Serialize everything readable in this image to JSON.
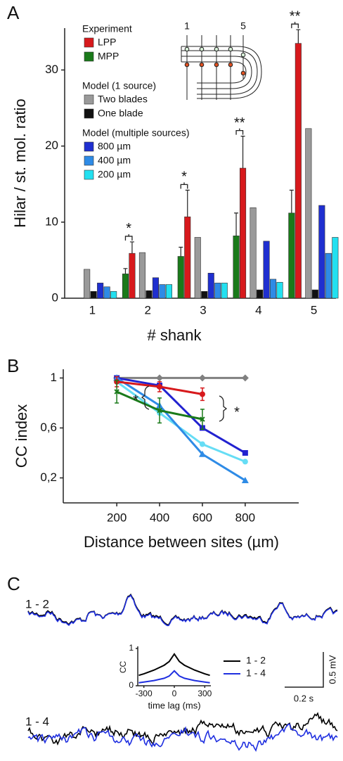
{
  "chart_data": [
    {
      "type": "bar",
      "panel": "A",
      "ylabel": "Hilar / st. mol. ratio",
      "xlabel": "# shank",
      "categories": [
        "1",
        "2",
        "3",
        "4",
        "5"
      ],
      "ylim": [
        0,
        35.5
      ],
      "yticks": [
        0,
        10,
        20,
        30
      ],
      "significance": [
        null,
        "*",
        "*",
        "**",
        "**"
      ],
      "inset_labels": [
        "1",
        "5"
      ],
      "series_groups": [
        {
          "title": "Experiment",
          "series": [
            {
              "name": "LPP",
              "color": "#d7191c",
              "values": [
                null,
                5.9,
                10.7,
                17.1,
                33.5
              ],
              "errors": [
                null,
                1.5,
                3.5,
                4.2,
                1.8
              ]
            },
            {
              "name": "MPP",
              "color": "#1a7a1a",
              "values": [
                null,
                3.2,
                5.5,
                8.2,
                11.2
              ],
              "errors": [
                null,
                0.7,
                1.2,
                3.0,
                3.0
              ]
            }
          ]
        },
        {
          "title": "Model (1 source)",
          "series": [
            {
              "name": "Two blades",
              "color": "#9a9a9a",
              "values": [
                3.8,
                6.0,
                8.0,
                11.9,
                22.3
              ]
            },
            {
              "name": "One blade",
              "color": "#111111",
              "values": [
                0.9,
                1.0,
                0.9,
                1.1,
                1.1
              ]
            }
          ]
        },
        {
          "title": "Model (multiple sources)",
          "series": [
            {
              "name": "800 µm",
              "color": "#1f2fd0",
              "values": [
                2.0,
                2.7,
                3.3,
                7.5,
                12.2
              ]
            },
            {
              "name": "400 µm",
              "color": "#2e8be6",
              "values": [
                1.5,
                1.8,
                2.0,
                2.5,
                5.9
              ]
            },
            {
              "name": "200 µm",
              "color": "#22e0f0",
              "values": [
                0.9,
                1.8,
                2.0,
                2.1,
                8.0
              ]
            }
          ]
        }
      ]
    },
    {
      "type": "line",
      "panel": "B",
      "ylabel": "CC index",
      "xlabel": "Distance between sites (µm)",
      "x": [
        200,
        400,
        600,
        800
      ],
      "xlim": [
        -50,
        1050
      ],
      "xticks": [
        200,
        400,
        600,
        800
      ],
      "ylim": [
        0,
        1.07
      ],
      "yticks": [
        1,
        {
          "value": 0.6,
          "label": "0,6"
        },
        {
          "value": 0.2,
          "label": "0,2"
        }
      ],
      "annotations": [
        "*",
        "*"
      ],
      "series": [
        {
          "color": "#808080",
          "marker": "diamond",
          "values": [
            1,
            1,
            1,
            1
          ]
        },
        {
          "color": "#2222d0",
          "marker": "square",
          "values": [
            1.0,
            0.94,
            0.6,
            0.4
          ]
        },
        {
          "color": "#66ddf5",
          "marker": "circle",
          "values": [
            0.97,
            0.72,
            0.47,
            0.33
          ]
        },
        {
          "color": "#2e8be6",
          "marker": "triangle",
          "values": [
            1.0,
            0.78,
            0.39,
            0.18
          ]
        },
        {
          "color": "#d7191c",
          "marker": "circle",
          "values": [
            0.97,
            0.93,
            0.87,
            null
          ],
          "errors": [
            0.04,
            0.04,
            0.05,
            null
          ]
        },
        {
          "color": "#1a7a1a",
          "marker": "cross",
          "values": [
            0.89,
            0.74,
            0.67,
            null
          ],
          "errors": [
            0.09,
            0.1,
            0.08,
            null
          ]
        }
      ]
    },
    {
      "type": "line",
      "panel": "C",
      "ylabel": "CC",
      "xlabel": "time lag (ms)",
      "x": [
        -350,
        -300,
        -200,
        -100,
        -50,
        0,
        50,
        100,
        200,
        300,
        350
      ],
      "xlim": [
        -360,
        360
      ],
      "xticks": [
        -300,
        0,
        300
      ],
      "ylim": [
        0,
        1
      ],
      "yticks": [
        0,
        1
      ],
      "trace_labels": [
        "1 - 2",
        "1 - 4"
      ],
      "scale_bars": {
        "voltage": "0.5 mV",
        "time": "0.2 s"
      },
      "series": [
        {
          "name": "1 - 2",
          "color": "#000000",
          "values": [
            0.28,
            0.32,
            0.42,
            0.55,
            0.65,
            0.85,
            0.65,
            0.55,
            0.42,
            0.32,
            0.28
          ]
        },
        {
          "name": "1 - 4",
          "color": "#1f2fe0",
          "values": [
            0.08,
            0.1,
            0.14,
            0.2,
            0.26,
            0.4,
            0.26,
            0.2,
            0.14,
            0.1,
            0.08
          ]
        }
      ]
    }
  ]
}
